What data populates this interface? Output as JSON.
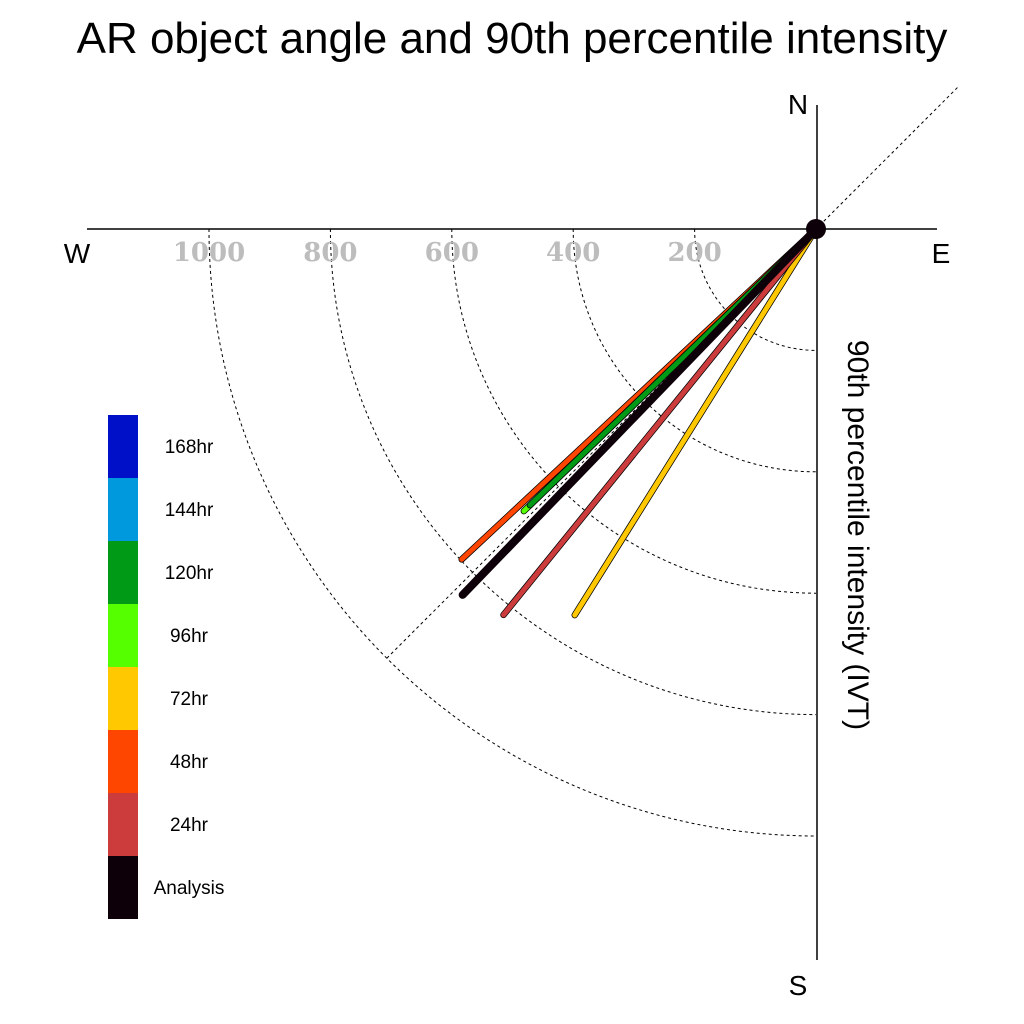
{
  "chart_data": {
    "type": "polar-vector",
    "title": "AR object angle and 90th percentile intensity",
    "ylabel": "90th percentile intensity (IVT)",
    "directions": {
      "north": "N",
      "south": "S",
      "east": "E",
      "west": "W"
    },
    "radial_ticks": [
      200,
      400,
      600,
      800,
      1000
    ],
    "rlim": [
      0,
      1000
    ],
    "grid": true,
    "reference_line_angle_deg": 45,
    "angle_convention": "degrees clockwise from North",
    "legend_placement": "left",
    "legend": [
      {
        "label": "168hr",
        "color": "#0010c8"
      },
      {
        "label": "144hr",
        "color": "#0099dd"
      },
      {
        "label": "120hr",
        "color": "#009a16"
      },
      {
        "label": "96hr",
        "color": "#55ff00"
      },
      {
        "label": "72hr",
        "color": "#ffc800"
      },
      {
        "label": "48hr",
        "color": "#ff4600"
      },
      {
        "label": "24hr",
        "color": "#cc3c3c"
      },
      {
        "label": "Analysis",
        "color": "#0d0008"
      }
    ],
    "series": [
      {
        "name": "72hr",
        "angle_deg": 212,
        "intensity": 750,
        "color": "#ffc800"
      },
      {
        "name": "24hr",
        "angle_deg": 219,
        "intensity": 818,
        "color": "#cc3c3c"
      },
      {
        "name": "48hr",
        "angle_deg": 227,
        "intensity": 798,
        "color": "#ff4600"
      },
      {
        "name": "96hr",
        "angle_deg": 226,
        "intensity": 669,
        "color": "#55ff00"
      },
      {
        "name": "120hr",
        "angle_deg": 226,
        "intensity": 655,
        "color": "#009a16"
      },
      {
        "name": "Analysis",
        "angle_deg": 224,
        "intensity": 838,
        "color": "#0d0008"
      }
    ]
  }
}
